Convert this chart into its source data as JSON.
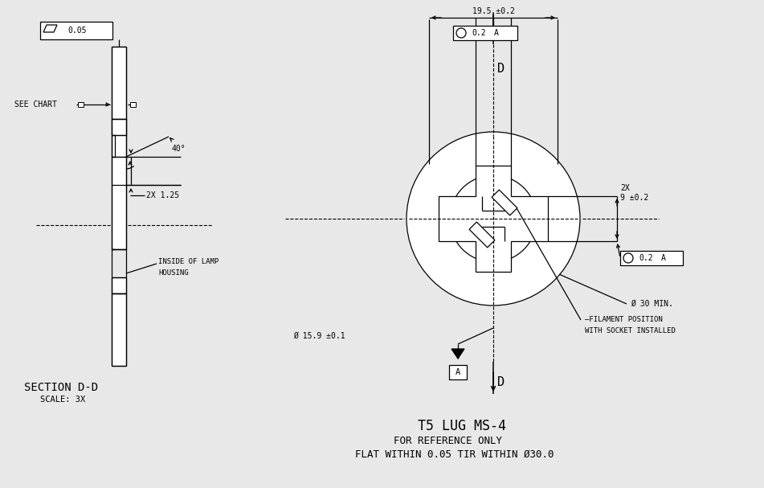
{
  "bg_color": "#e8e8e8",
  "line_color": "#000000",
  "title1": "T5 LUG MS-4",
  "title2": "FOR REFERENCE ONLY",
  "title3": "FLAT WITHIN 0.05 TIR WITHIN Ø30.0",
  "section_label": "SECTION D-D",
  "scale_label": "SCALE: 3X",
  "font_family": "monospace"
}
